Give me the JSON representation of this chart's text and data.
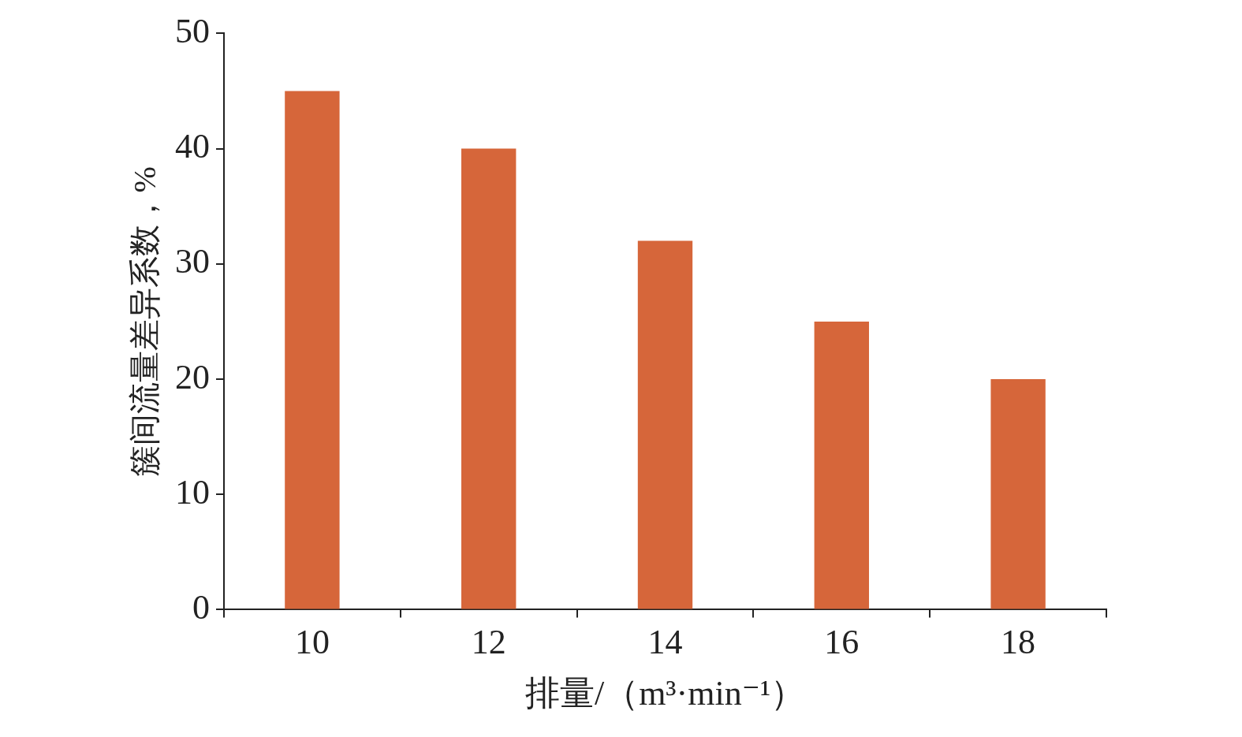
{
  "chart_data": {
    "type": "bar",
    "xlabel": "排量/（m³·min⁻¹）",
    "ylabel": "簇间流量差异系数，%",
    "categories": [
      "10",
      "12",
      "14",
      "16",
      "18"
    ],
    "values": [
      45,
      40,
      32,
      25,
      20
    ],
    "color": "#d6663a",
    "ylim": [
      0,
      50
    ],
    "yticks": [
      0,
      10,
      20,
      30,
      40,
      50
    ],
    "grid": false,
    "legend": false
  }
}
